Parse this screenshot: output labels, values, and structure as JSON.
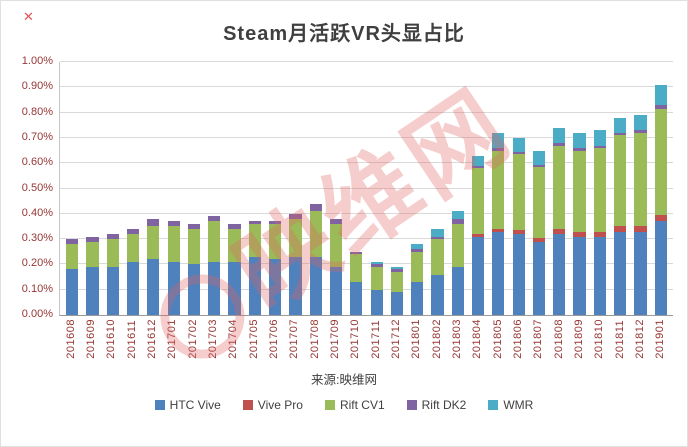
{
  "corner_mark": "✕",
  "source_text": "来源:映维网",
  "watermark_text": "映维网",
  "colors": {
    "axis_label": "#953735",
    "gridline": "#d9d9d9",
    "title": "#3f3f3f",
    "watermark": "#e06464"
  },
  "chart_data": {
    "type": "bar",
    "stacked": true,
    "title": "Steam月活跃VR头显占比",
    "xlabel": "",
    "ylabel": "",
    "ylim": [
      0,
      1.0
    ],
    "ytick_step": 0.1,
    "grid": true,
    "legend_position": "bottom",
    "yticks": [
      "0.00%",
      "0.10%",
      "0.20%",
      "0.30%",
      "0.40%",
      "0.50%",
      "0.60%",
      "0.70%",
      "0.80%",
      "0.90%",
      "1.00%"
    ],
    "categories": [
      "201608",
      "201609",
      "201610",
      "201611",
      "201612",
      "201701",
      "201702",
      "201703",
      "201704",
      "201705",
      "201706",
      "201707",
      "201708",
      "201709",
      "201710",
      "201711",
      "201712",
      "201801",
      "201802",
      "201803",
      "201804",
      "201805",
      "201806",
      "201807",
      "201808",
      "201809",
      "201810",
      "201811",
      "201812",
      "201901"
    ],
    "value_unit": "percent",
    "series": [
      {
        "name": "HTC Vive",
        "color": "#4F81BD",
        "values": [
          0.18,
          0.19,
          0.19,
          0.21,
          0.22,
          0.21,
          0.2,
          0.21,
          0.21,
          0.23,
          0.22,
          0.23,
          0.23,
          0.19,
          0.13,
          0.1,
          0.09,
          0.13,
          0.16,
          0.19,
          0.31,
          0.33,
          0.32,
          0.29,
          0.32,
          0.31,
          0.31,
          0.33,
          0.33,
          0.37
        ]
      },
      {
        "name": "Vive Pro",
        "color": "#C0504D",
        "values": [
          0,
          0,
          0,
          0,
          0,
          0,
          0,
          0,
          0,
          0,
          0,
          0,
          0,
          0,
          0,
          0,
          0,
          0,
          0,
          0,
          0.01,
          0.01,
          0.015,
          0.015,
          0.02,
          0.02,
          0.02,
          0.02,
          0.02,
          0.025
        ]
      },
      {
        "name": "Rift CV1",
        "color": "#9BBB59",
        "values": [
          0.1,
          0.1,
          0.11,
          0.11,
          0.13,
          0.14,
          0.14,
          0.16,
          0.13,
          0.13,
          0.14,
          0.15,
          0.18,
          0.17,
          0.11,
          0.09,
          0.08,
          0.12,
          0.14,
          0.17,
          0.26,
          0.31,
          0.3,
          0.28,
          0.33,
          0.32,
          0.33,
          0.36,
          0.37,
          0.42
        ]
      },
      {
        "name": "Rift DK2",
        "color": "#8064A2",
        "values": [
          0.02,
          0.02,
          0.02,
          0.02,
          0.03,
          0.02,
          0.02,
          0.02,
          0.02,
          0.01,
          0.01,
          0.02,
          0.03,
          0.02,
          0.01,
          0.01,
          0.01,
          0.01,
          0.01,
          0.02,
          0.01,
          0.01,
          0.01,
          0.01,
          0.01,
          0.01,
          0.01,
          0.01,
          0.01,
          0.015
        ]
      },
      {
        "name": "WMR",
        "color": "#4BACC6",
        "values": [
          0,
          0,
          0,
          0,
          0,
          0,
          0,
          0,
          0,
          0,
          0,
          0,
          0,
          0,
          0,
          0.01,
          0.01,
          0.02,
          0.03,
          0.03,
          0.04,
          0.06,
          0.055,
          0.055,
          0.06,
          0.06,
          0.06,
          0.06,
          0.06,
          0.08
        ]
      }
    ],
    "totals": [
      0.3,
      0.31,
      0.32,
      0.34,
      0.38,
      0.37,
      0.36,
      0.39,
      0.36,
      0.37,
      0.37,
      0.4,
      0.44,
      0.38,
      0.25,
      0.21,
      0.19,
      0.28,
      0.34,
      0.41,
      0.63,
      0.72,
      0.7,
      0.65,
      0.74,
      0.72,
      0.73,
      0.78,
      0.79,
      0.91
    ]
  }
}
